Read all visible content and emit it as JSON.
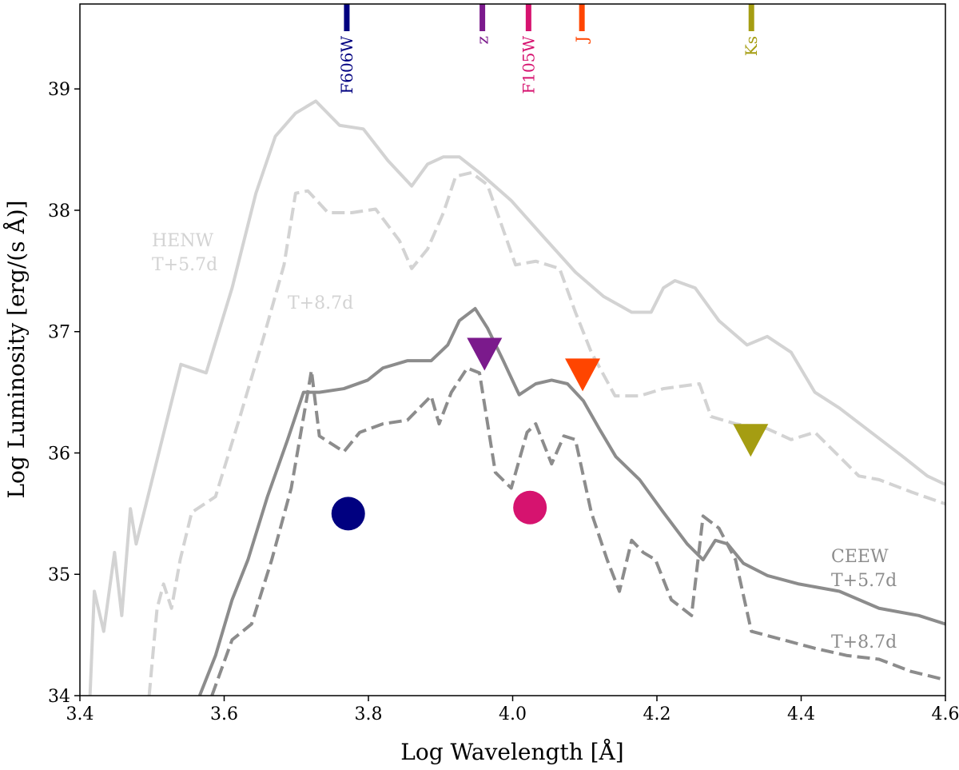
{
  "chart_data": {
    "type": "line",
    "xlabel": "Log Wavelength [Å]",
    "ylabel": "Log Luminosity [erg/(s Å)]",
    "xlim": [
      3.4,
      4.6
    ],
    "ylim": [
      34,
      39.7
    ],
    "xticks": [
      3.4,
      3.6,
      3.8,
      {
        "value": 4.0,
        "label": "4.0"
      },
      4.2,
      4.4,
      4.6
    ],
    "yticks": [
      34,
      35,
      36,
      37,
      38,
      39
    ],
    "series": [
      {
        "color": "#d3d3d3",
        "dashed": false,
        "x": [
          3.414,
          3.42,
          3.433,
          3.448,
          3.458,
          3.47,
          3.478,
          3.511,
          3.54,
          3.575,
          3.611,
          3.644,
          3.671,
          3.699,
          3.727,
          3.76,
          3.793,
          3.827,
          3.86,
          3.882,
          3.904,
          3.926,
          3.954,
          3.998,
          4.043,
          4.087,
          4.126,
          4.165,
          4.192,
          4.209,
          4.225,
          4.253,
          4.286,
          4.325,
          4.353,
          4.386,
          4.419,
          4.453,
          4.497,
          4.541,
          4.575,
          4.6
        ],
        "values": [
          34.0,
          34.86,
          34.53,
          35.18,
          34.66,
          35.54,
          35.25,
          36.04,
          36.73,
          36.66,
          37.36,
          38.14,
          38.61,
          38.8,
          38.9,
          38.7,
          38.67,
          38.41,
          38.2,
          38.38,
          38.44,
          38.44,
          38.31,
          38.08,
          37.78,
          37.49,
          37.29,
          37.16,
          37.16,
          37.36,
          37.42,
          37.36,
          37.09,
          36.89,
          36.96,
          36.83,
          36.5,
          36.37,
          36.17,
          35.97,
          35.81,
          35.74
        ]
      },
      {
        "color": "#d3d3d3",
        "dashed": true,
        "x": [
          3.496,
          3.507,
          3.516,
          3.527,
          3.539,
          3.555,
          3.588,
          3.622,
          3.655,
          3.683,
          3.699,
          3.716,
          3.744,
          3.777,
          3.81,
          3.843,
          3.86,
          3.882,
          3.904,
          3.921,
          3.943,
          3.965,
          4.004,
          4.032,
          4.065,
          4.087,
          4.109,
          4.142,
          4.176,
          4.209,
          4.259,
          4.275,
          4.309,
          4.353,
          4.386,
          4.419,
          4.453,
          4.48,
          4.508,
          4.552,
          4.6
        ],
        "values": [
          34.0,
          34.72,
          34.92,
          34.72,
          35.12,
          35.51,
          35.64,
          36.3,
          36.96,
          37.55,
          38.14,
          38.16,
          37.98,
          37.98,
          38.01,
          37.75,
          37.52,
          37.68,
          37.98,
          38.28,
          38.31,
          38.21,
          37.55,
          37.58,
          37.52,
          37.16,
          36.83,
          36.47,
          36.47,
          36.53,
          36.57,
          36.3,
          36.24,
          36.2,
          36.11,
          36.17,
          35.97,
          35.81,
          35.78,
          35.68,
          35.58
        ]
      },
      {
        "color": "#8c8c8c",
        "dashed": false,
        "x": [
          3.566,
          3.588,
          3.611,
          3.633,
          3.66,
          3.688,
          3.71,
          3.732,
          3.766,
          3.799,
          3.82,
          3.854,
          3.887,
          3.91,
          3.926,
          3.948,
          3.965,
          3.987,
          4.009,
          4.032,
          4.054,
          4.076,
          4.098,
          4.12,
          4.143,
          4.176,
          4.209,
          4.242,
          4.264,
          4.281,
          4.298,
          4.32,
          4.353,
          4.397,
          4.453,
          4.508,
          4.563,
          4.6
        ],
        "values": [
          34.0,
          34.33,
          34.79,
          35.12,
          35.64,
          36.11,
          36.5,
          36.5,
          36.53,
          36.6,
          36.7,
          36.76,
          36.76,
          36.89,
          37.09,
          37.19,
          37.03,
          36.76,
          36.48,
          36.57,
          36.6,
          36.57,
          36.43,
          36.2,
          35.97,
          35.78,
          35.51,
          35.25,
          35.12,
          35.28,
          35.25,
          35.09,
          34.99,
          34.92,
          34.86,
          34.72,
          34.66,
          34.59
        ]
      },
      {
        "color": "#8c8c8c",
        "dashed": true,
        "x": [
          3.583,
          3.611,
          3.638,
          3.666,
          3.693,
          3.716,
          3.721,
          3.732,
          3.766,
          3.788,
          3.82,
          3.854,
          3.887,
          3.898,
          3.915,
          3.937,
          3.954,
          3.976,
          3.998,
          4.02,
          4.032,
          4.054,
          4.071,
          4.087,
          4.109,
          4.131,
          4.148,
          4.165,
          4.181,
          4.198,
          4.22,
          4.248,
          4.264,
          4.286,
          4.309,
          4.331,
          4.375,
          4.419,
          4.464,
          4.508,
          4.552,
          4.6
        ],
        "values": [
          34.0,
          34.46,
          34.59,
          35.12,
          35.71,
          36.5,
          36.68,
          36.14,
          36.01,
          36.17,
          36.24,
          36.27,
          36.47,
          36.24,
          36.5,
          36.7,
          36.66,
          35.84,
          35.71,
          36.17,
          36.24,
          35.91,
          36.14,
          36.11,
          35.51,
          35.12,
          34.86,
          35.28,
          35.18,
          35.12,
          34.79,
          34.66,
          35.48,
          35.38,
          35.12,
          34.53,
          34.46,
          34.39,
          34.33,
          34.3,
          34.2,
          34.13
        ]
      }
    ],
    "filters": [
      {
        "label": "F606W",
        "x": 3.77,
        "color": "#000080"
      },
      {
        "label": "z",
        "x": 3.958,
        "color": "#7b1a8c"
      },
      {
        "label": "F105W",
        "x": 4.022,
        "color": "#d6136f"
      },
      {
        "label": "J",
        "x": 4.096,
        "color": "#ff4500"
      },
      {
        "label": "Ks",
        "x": 4.331,
        "color": "#a59d12"
      }
    ],
    "points": [
      {
        "x": 3.772,
        "y": 35.5,
        "shape": "circle",
        "color": "#000080"
      },
      {
        "x": 4.024,
        "y": 35.55,
        "shape": "circle",
        "color": "#d6136f"
      },
      {
        "x": 3.961,
        "y": 36.83,
        "shape": "triangle-down",
        "color": "#7b1a8c"
      },
      {
        "x": 4.097,
        "y": 36.66,
        "shape": "triangle-down",
        "color": "#ff4500"
      },
      {
        "x": 4.33,
        "y": 36.12,
        "shape": "triangle-down",
        "color": "#a59d12"
      }
    ],
    "annotations": [
      {
        "lines": [
          "HENW",
          "T+5.7d"
        ],
        "color": "#d3d3d3"
      },
      {
        "lines": [
          "T+8.7d"
        ],
        "color": "#d3d3d3"
      },
      {
        "lines": [
          "CEEW",
          "T+5.7d"
        ],
        "color": "#8c8c8c"
      },
      {
        "lines": [
          "T+8.7d"
        ],
        "color": "#8c8c8c"
      }
    ]
  }
}
